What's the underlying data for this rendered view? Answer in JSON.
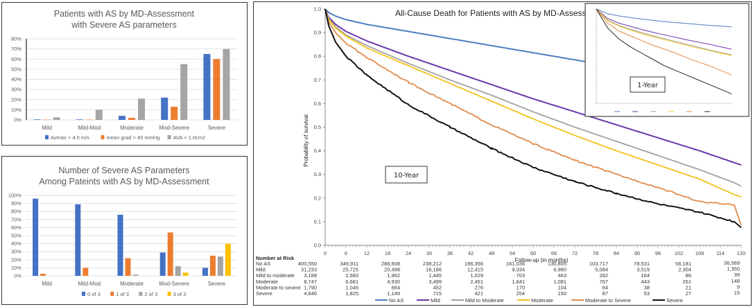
{
  "chart_data": [
    {
      "type": "bar",
      "title": "Patients with AS by MD-Assessment with Severe AS parameters",
      "title_lines": [
        "Patients with AS by MD-Assessment",
        "with Severe AS parameters"
      ],
      "categories": [
        "Mild",
        "Mild-Mod",
        "Moderate",
        "Mod-Severe",
        "Severe"
      ],
      "series": [
        {
          "name": "Avmax > 4.0 m/s",
          "color": "#4472C4",
          "values": [
            0.5,
            0.5,
            4,
            22,
            65
          ]
        },
        {
          "name": "mean grad > 40 mmHg",
          "color": "#ED7D31",
          "values": [
            0.3,
            0.3,
            2,
            13,
            60
          ]
        },
        {
          "name": "AVA < 1.0cm2",
          "color": "#A5A5A5",
          "values": [
            2.5,
            10,
            21,
            55,
            70
          ]
        }
      ],
      "ylim": [
        0,
        80
      ],
      "yticks": [
        "0%",
        "10%",
        "20%",
        "30%",
        "40%",
        "50%",
        "60%",
        "70%",
        "80%"
      ],
      "ytick_values": [
        0,
        10,
        20,
        30,
        40,
        50,
        60,
        70,
        80
      ],
      "grid": true,
      "legend": "bottom",
      "xlabel": "",
      "ylabel": ""
    },
    {
      "type": "bar",
      "title": "Number of Severe AS Parameters Among Pateints with AS by MD-Assessment",
      "title_lines": [
        "Number of Severe AS Parameters",
        "Among Pateints with AS by MD-Assessment"
      ],
      "categories": [
        "Mild",
        "Mild-Mod",
        "Moderate",
        "Mod-Severe",
        "Severe"
      ],
      "series": [
        {
          "name": "0 of 3",
          "color": "#4472C4",
          "values": [
            96,
            89,
            76,
            29,
            10
          ]
        },
        {
          "name": "1 of 3",
          "color": "#ED7D31",
          "values": [
            2.5,
            10,
            22,
            54,
            25
          ]
        },
        {
          "name": "2 of 3",
          "color": "#A5A5A5",
          "values": [
            0,
            0,
            1.5,
            12,
            24
          ]
        },
        {
          "name": "3 of 3",
          "color": "#FFC000",
          "values": [
            0,
            0,
            0,
            4,
            40
          ]
        }
      ],
      "ylim": [
        0,
        100
      ],
      "yticks": [
        "0%",
        "10%",
        "20%",
        "30%",
        "40%",
        "50%",
        "60%",
        "70%",
        "80%",
        "90%",
        "100%"
      ],
      "ytick_values": [
        0,
        10,
        20,
        30,
        40,
        50,
        60,
        70,
        80,
        90,
        100
      ],
      "grid": true,
      "legend": "bottom",
      "xlabel": "",
      "ylabel": ""
    },
    {
      "type": "line",
      "title": "All-Cause Death for Patients with AS by MD-Assessment",
      "xlabel": "Follow-up  (in months)",
      "ylabel": "Probability of survival",
      "xlim": [
        0,
        120
      ],
      "ylim": [
        0,
        1
      ],
      "xticks": [
        0,
        6,
        12,
        18,
        24,
        30,
        36,
        42,
        48,
        54,
        60,
        66,
        72,
        78,
        84,
        90,
        96,
        102,
        108,
        114,
        120
      ],
      "yticks": [
        "0.0",
        "0.1",
        "0.2",
        "0.3",
        "0.4",
        "0.5",
        "0.6",
        "0.7",
        "0.8",
        "0.9",
        "1.0"
      ],
      "ytick_values": [
        0,
        0.1,
        0.2,
        0.3,
        0.4,
        0.5,
        0.6,
        0.7,
        0.8,
        0.9,
        1.0
      ],
      "annotation": "10-Year",
      "legend": "bottom",
      "x": [
        0,
        1,
        3,
        6,
        12,
        24,
        36,
        48,
        60,
        72,
        84,
        96,
        108,
        118,
        120
      ],
      "series": [
        {
          "name": "No AS",
          "color": "#4A7EC0",
          "values": [
            1,
            0.985,
            0.97,
            0.955,
            0.935,
            0.905,
            0.875,
            0.845,
            0.815,
            0.785,
            0.755,
            0.725,
            0.695,
            0.668,
            0.662
          ]
        },
        {
          "name": "Mild",
          "color": "#6A36A8",
          "values": [
            1,
            0.965,
            0.935,
            0.905,
            0.865,
            0.8,
            0.74,
            0.68,
            0.62,
            0.565,
            0.51,
            0.455,
            0.4,
            0.35,
            0.34
          ]
        },
        {
          "name": "Mild to Moderate",
          "color": "#A0A0A0",
          "values": [
            1,
            0.96,
            0.925,
            0.89,
            0.845,
            0.77,
            0.7,
            0.635,
            0.565,
            0.5,
            0.44,
            0.38,
            0.32,
            0.265,
            0.25
          ]
        },
        {
          "name": "Moderate",
          "color": "#F2C118",
          "values": [
            1,
            0.955,
            0.92,
            0.885,
            0.835,
            0.76,
            0.685,
            0.61,
            0.535,
            0.465,
            0.4,
            0.34,
            0.28,
            0.215,
            0.205
          ]
        },
        {
          "name": "Moderate to Severe",
          "color": "#E08A4A",
          "values": [
            1,
            0.945,
            0.9,
            0.855,
            0.795,
            0.69,
            0.6,
            0.51,
            0.43,
            0.36,
            0.3,
            0.245,
            0.185,
            0.17,
            0.085
          ]
        },
        {
          "name": "Severe",
          "color": "#111111",
          "values": [
            1,
            0.93,
            0.86,
            0.8,
            0.72,
            0.595,
            0.5,
            0.41,
            0.33,
            0.27,
            0.22,
            0.175,
            0.14,
            0.1,
            0.075
          ]
        }
      ],
      "inset": {
        "annotation": "1-Year",
        "x": [
          0,
          1,
          2,
          3,
          4,
          5,
          6,
          7,
          8,
          9,
          10,
          11,
          12
        ],
        "ylim": [
          0.7,
          1.0
        ],
        "series": [
          {
            "name": "No AS",
            "color": "#4A7EC0",
            "values": [
              1,
              0.985,
              0.978,
              0.973,
              0.968,
              0.964,
              0.96,
              0.957,
              0.954,
              0.951,
              0.948,
              0.946,
              0.943
            ]
          },
          {
            "name": "Mild",
            "color": "#6A36A8",
            "values": [
              1,
              0.97,
              0.955,
              0.945,
              0.935,
              0.926,
              0.918,
              0.91,
              0.902,
              0.895,
              0.888,
              0.88,
              0.872
            ]
          },
          {
            "name": "Mild to Moderate",
            "color": "#A0A0A0",
            "values": [
              1,
              0.965,
              0.948,
              0.936,
              0.925,
              0.915,
              0.906,
              0.897,
              0.888,
              0.879,
              0.87,
              0.862,
              0.854
            ]
          },
          {
            "name": "Moderate",
            "color": "#F2C118",
            "values": [
              1,
              0.963,
              0.946,
              0.933,
              0.922,
              0.912,
              0.903,
              0.894,
              0.885,
              0.876,
              0.868,
              0.86,
              0.852
            ]
          },
          {
            "name": "Moderate to Severe",
            "color": "#E08A4A",
            "values": [
              1,
              0.955,
              0.93,
              0.915,
              0.9,
              0.885,
              0.873,
              0.86,
              0.845,
              0.832,
              0.82,
              0.805,
              0.79
            ]
          },
          {
            "name": "Severe",
            "color": "#222222",
            "values": [
              1,
              0.94,
              0.905,
              0.88,
              0.86,
              0.84,
              0.82,
              0.805,
              0.79,
              0.775,
              0.76,
              0.745,
              0.73
            ]
          }
        ]
      }
    }
  ],
  "risk_table": {
    "header": "Number at Risk",
    "months": [
      0,
      12,
      24,
      36,
      48,
      60,
      72,
      84,
      96,
      108,
      120
    ],
    "rows": [
      {
        "label": "No AS",
        "values": [
          "400,550",
          "349,911",
          "288,608",
          "238,212",
          "196,356",
          "161,036",
          "130,805",
          "103,717",
          "78,531",
          "56,181",
          "36,069"
        ]
      },
      {
        "label": "Mild",
        "values": [
          "31,233",
          "25,725",
          "20,498",
          "16,186",
          "12,415",
          "9,334",
          "6,980",
          "5,084",
          "3,519",
          "2,304",
          "1,350"
        ]
      },
      {
        "label": "Mild to moderate",
        "values": [
          "3,188",
          "2,560",
          "1,962",
          "1,445",
          "1,029",
          "703",
          "463",
          "282",
          "164",
          "86",
          "39"
        ]
      },
      {
        "label": "Moderate",
        "values": [
          "8,747",
          "6,681",
          "4,930",
          "3,499",
          "2,451",
          "1,641",
          "1,081",
          "707",
          "443",
          "261",
          "148"
        ]
      },
      {
        "label": "Moderate to severe",
        "values": [
          "1,790",
          "1,046",
          "664",
          "452",
          "276",
          "170",
          "104",
          "64",
          "38",
          "21",
          "9"
        ]
      },
      {
        "label": "Severe",
        "values": [
          "4,646",
          "1,825",
          "1,149",
          "715",
          "421",
          "254",
          "150",
          "87",
          "53",
          "27",
          "15"
        ]
      }
    ]
  }
}
